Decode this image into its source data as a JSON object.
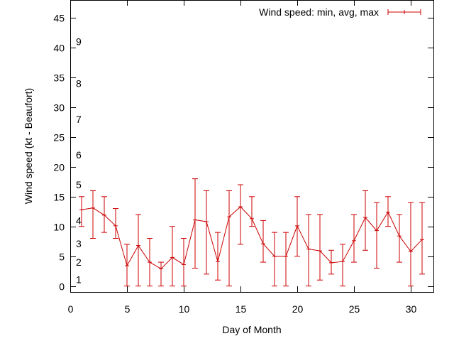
{
  "chart_data": {
    "type": "line",
    "subtype": "errorbars",
    "title": "",
    "xlabel": "Day of Month",
    "ylabel": "Wind speed (kt - Beaufort)",
    "xlim": [
      0,
      32
    ],
    "ylim": [
      -1,
      48
    ],
    "xticks": [
      0,
      5,
      10,
      15,
      20,
      25,
      30
    ],
    "yticks": [
      0,
      5,
      10,
      15,
      20,
      25,
      30,
      35,
      40,
      45
    ],
    "grid": false,
    "legend_position": "top-right",
    "series": [
      {
        "name": "Wind speed: min, avg, max",
        "color": "#cc0000",
        "x": [
          1,
          2,
          3,
          4,
          5,
          6,
          7,
          8,
          9,
          10,
          11,
          12,
          13,
          14,
          15,
          16,
          17,
          18,
          19,
          20,
          21,
          22,
          23,
          24,
          25,
          26,
          27,
          28,
          29,
          30,
          31
        ],
        "avg": [
          12.8,
          13.1,
          11.9,
          10.1,
          3.4,
          6.8,
          4.0,
          2.9,
          4.8,
          3.6,
          11.1,
          10.8,
          4.1,
          11.6,
          13.3,
          11.3,
          7.1,
          5.0,
          5.0,
          10.1,
          6.2,
          5.9,
          3.9,
          4.1,
          7.6,
          11.5,
          9.3,
          12.4,
          8.4,
          5.8,
          7.8
        ],
        "min": [
          10.0,
          8.0,
          9.0,
          8.0,
          0.0,
          0.0,
          0.0,
          0.0,
          0.0,
          0.0,
          3.0,
          2.0,
          1.0,
          0.0,
          7.0,
          10.0,
          4.0,
          0.0,
          0.0,
          5.0,
          0.0,
          1.0,
          2.0,
          0.0,
          4.0,
          6.0,
          3.0,
          10.0,
          4.0,
          0.0,
          2.0
        ],
        "max": [
          15.0,
          16.0,
          15.0,
          13.0,
          7.0,
          12.0,
          8.0,
          4.0,
          10.0,
          8.0,
          18.0,
          16.0,
          9.0,
          16.0,
          17.0,
          15.0,
          11.0,
          9.0,
          9.0,
          15.0,
          12.0,
          12.0,
          6.0,
          7.0,
          12.0,
          16.0,
          14.0,
          15.0,
          12.0,
          14.0,
          14.0
        ]
      }
    ],
    "beaufort_labels": [
      {
        "label": "1",
        "y": 1.1
      },
      {
        "label": "2",
        "y": 4.0
      },
      {
        "label": "3",
        "y": 7.1
      },
      {
        "label": "4",
        "y": 11.0
      },
      {
        "label": "5",
        "y": 17.0
      },
      {
        "label": "6",
        "y": 22.0
      },
      {
        "label": "7",
        "y": 28.0
      },
      {
        "label": "8",
        "y": 34.0
      },
      {
        "label": "9",
        "y": 41.0
      }
    ]
  }
}
